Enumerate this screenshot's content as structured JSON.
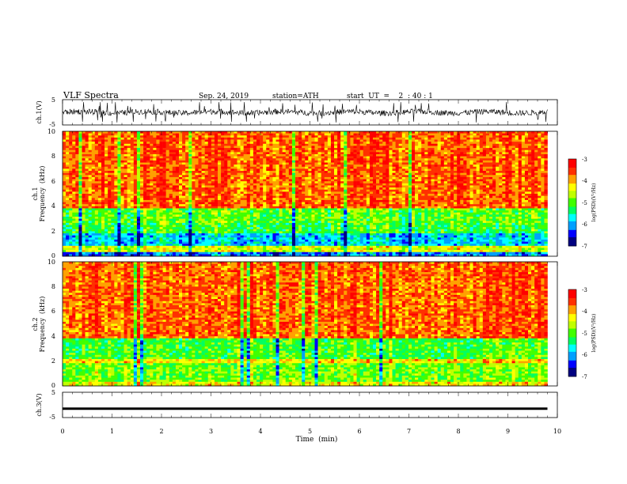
{
  "header": {
    "title": "VLF  Spectra",
    "date": "Sep. 24, 2019",
    "station": "station=ATH",
    "start_ut": "start  UT  =    2  : 40 : 1"
  },
  "chart_data": [
    {
      "type": "line",
      "panel": "ch1-waveform",
      "ylabel": "ch.1(V)",
      "ylim": [
        -5,
        5
      ],
      "yticks": [
        "5",
        "-5"
      ],
      "xlim": [
        0,
        10
      ],
      "series": [
        {
          "values_range": [
            -2,
            2
          ]
        }
      ]
    },
    {
      "type": "heatmap",
      "panel": "ch1-spectrogram",
      "ylabel_line1": "ch.1",
      "ylabel_line2": "Frequency  (kHz)",
      "ylim": [
        0,
        10
      ],
      "yticks": [
        "0",
        "2",
        "4",
        "6",
        "8",
        "10"
      ],
      "xlim": [
        0,
        9.8
      ],
      "colorbar": {
        "label": "log(PSD)(V²/Hz)",
        "range": [
          -7,
          -3
        ],
        "ticks": [
          "-3",
          "-4",
          "-5",
          "-6",
          "-7"
        ]
      },
      "bands_khz": [
        {
          "from": 0.0,
          "to": 0.3,
          "level": -6.2
        },
        {
          "from": 0.3,
          "to": 0.9,
          "level": -4.5
        },
        {
          "from": 0.9,
          "to": 1.8,
          "level": -5.9
        },
        {
          "from": 1.8,
          "to": 2.6,
          "level": -5.2
        },
        {
          "from": 2.6,
          "to": 3.8,
          "level": -5.0
        },
        {
          "from": 3.8,
          "to": 10.0,
          "level": -3.7
        }
      ]
    },
    {
      "type": "heatmap",
      "panel": "ch2-spectrogram",
      "ylabel_line1": "ch.2",
      "ylabel_line2": "Frequency  (kHz)",
      "ylim": [
        0,
        10
      ],
      "yticks": [
        "0",
        "2",
        "4",
        "6",
        "8",
        "10"
      ],
      "xlim": [
        0,
        9.8
      ],
      "colorbar": {
        "label": "log(PSD)(V²/Hz)",
        "range": [
          -7,
          -3
        ],
        "ticks": [
          "-3",
          "-4",
          "-5",
          "-6",
          "-7"
        ]
      },
      "bands_khz": [
        {
          "from": 0.0,
          "to": 0.4,
          "level": -4.3
        },
        {
          "from": 0.4,
          "to": 1.8,
          "level": -4.9
        },
        {
          "from": 1.8,
          "to": 2.2,
          "level": -4.2
        },
        {
          "from": 2.2,
          "to": 3.8,
          "level": -5.1
        },
        {
          "from": 3.8,
          "to": 10.0,
          "level": -3.7
        }
      ]
    },
    {
      "type": "line",
      "panel": "ch3-waveform",
      "ylabel": "ch.3(V)",
      "ylim": [
        -5,
        5
      ],
      "yticks": [
        "5",
        "-5"
      ],
      "xlim": [
        0,
        10
      ],
      "series": [
        {
          "constant": -1.5
        }
      ]
    }
  ],
  "x_axis": {
    "label": "Time  (min)",
    "ticks": [
      "0",
      "1",
      "2",
      "3",
      "4",
      "5",
      "6",
      "7",
      "8",
      "9",
      "10"
    ]
  },
  "colors": {
    "colormap": [
      "#000080",
      "#0000ff",
      "#00a0ff",
      "#00ffff",
      "#00ff60",
      "#40ff00",
      "#c0ff00",
      "#ffff00",
      "#ffa000",
      "#ff3000",
      "#ff0000",
      "#ffffff"
    ]
  }
}
